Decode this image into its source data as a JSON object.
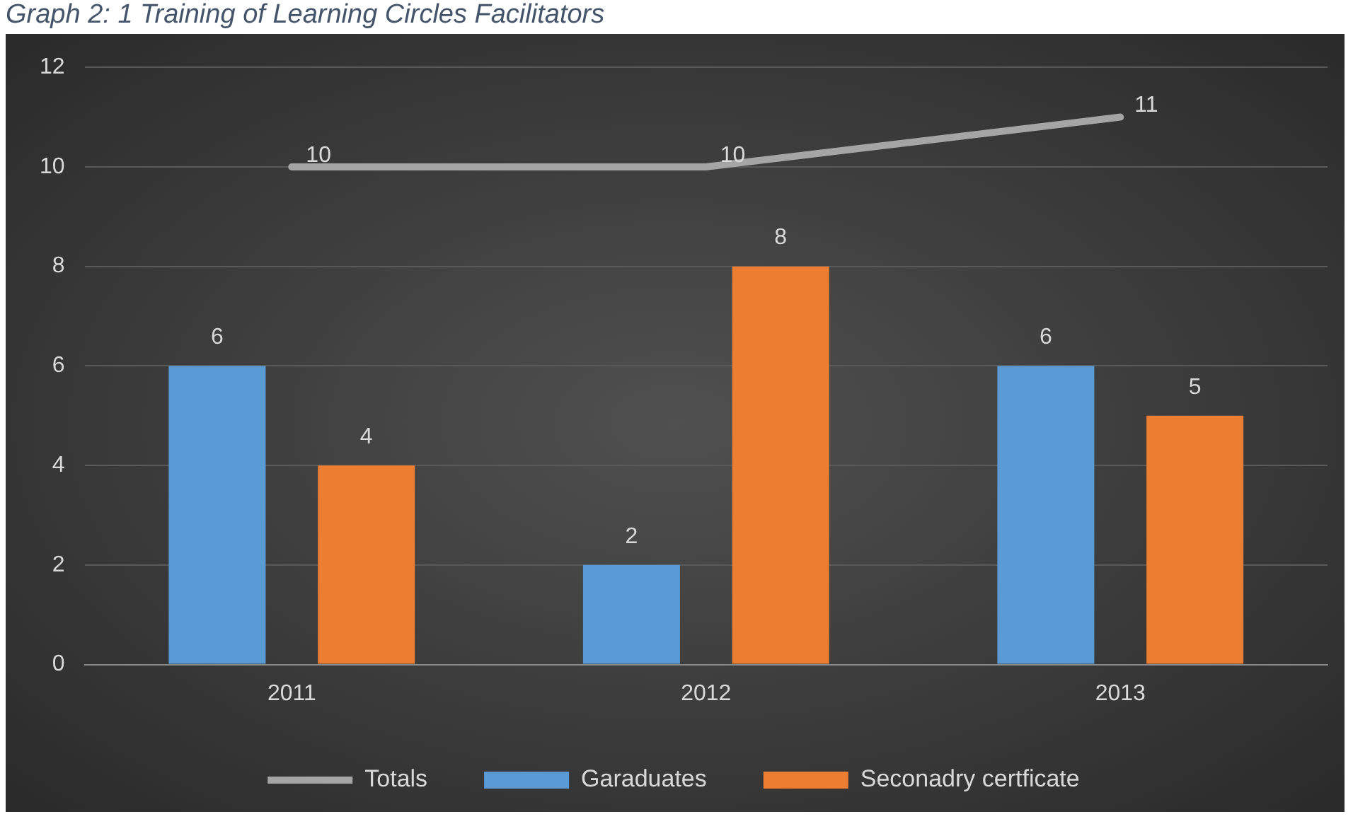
{
  "chart_data": {
    "type": "bar",
    "title": "Graph 2: 1 Training of Learning Circles Facilitators",
    "categories": [
      "2011",
      "2012",
      "2013"
    ],
    "series": [
      {
        "name": "Garaduates",
        "color": "#5b9bd5",
        "values": [
          6,
          2,
          6
        ]
      },
      {
        "name": "Seconadry certficate",
        "color": "#ed7d31",
        "values": [
          4,
          8,
          5
        ]
      },
      {
        "name": "Totals",
        "type": "line",
        "color": "#a5a5a5",
        "values": [
          10,
          10,
          11
        ]
      }
    ],
    "ylim": [
      0,
      12
    ],
    "yticks": [
      0,
      2,
      4,
      6,
      8,
      10,
      12
    ],
    "grid": "y",
    "legend": "bottom",
    "data_labels": true,
    "marker": "none"
  }
}
